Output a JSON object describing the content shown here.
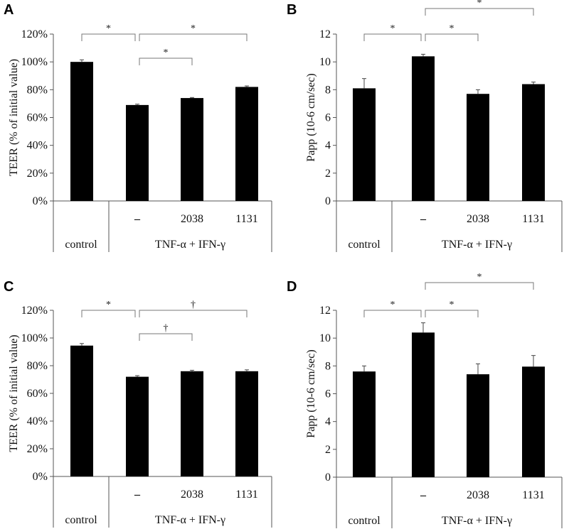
{
  "chart_data": [
    {
      "panel": "A",
      "type": "bar",
      "ylabel": "TEER (% of initial value)",
      "yticks": [
        "0%",
        "20%",
        "40%",
        "60%",
        "80%",
        "100%",
        "120%"
      ],
      "ylim": [
        0,
        120
      ],
      "categories": [
        "",
        "–",
        "2038",
        "1131"
      ],
      "groups": [
        "control",
        "TNF-α + IFN-γ"
      ],
      "values": [
        100,
        69,
        74,
        82
      ],
      "errors": [
        1.5,
        0.6,
        0.4,
        0.7
      ],
      "bar_color": "#000000",
      "comparisons": [
        {
          "from": 0,
          "to": 1,
          "label": "*"
        },
        {
          "from": 1,
          "to": 3,
          "label": "*"
        },
        {
          "from": 1,
          "to": 2,
          "label": "*"
        }
      ]
    },
    {
      "panel": "B",
      "type": "bar",
      "ylabel": "Papp (10-6 cm/sec)",
      "yticks": [
        "0",
        "2",
        "4",
        "6",
        "8",
        "10",
        "12"
      ],
      "ylim": [
        0,
        12
      ],
      "categories": [
        "",
        "–",
        "2038",
        "1131"
      ],
      "groups": [
        "control",
        "TNF-α + IFN-γ"
      ],
      "values": [
        8.1,
        10.4,
        7.7,
        8.4
      ],
      "errors": [
        0.7,
        0.15,
        0.3,
        0.15
      ],
      "bar_color": "#000000",
      "comparisons": [
        {
          "from": 0,
          "to": 1,
          "label": "*"
        },
        {
          "from": 1,
          "to": 2,
          "label": "*"
        },
        {
          "from": 1,
          "to": 3,
          "label": "*"
        }
      ]
    },
    {
      "panel": "C",
      "type": "bar",
      "ylabel": "TEER (% of initial value)",
      "yticks": [
        "0%",
        "20%",
        "40%",
        "60%",
        "80%",
        "100%",
        "120%"
      ],
      "ylim": [
        0,
        120
      ],
      "categories": [
        "",
        "–",
        "2038",
        "1131"
      ],
      "groups": [
        "control",
        "TNF-α + IFN-γ"
      ],
      "values": [
        94.5,
        72,
        76,
        76
      ],
      "errors": [
        1.5,
        0.8,
        0.7,
        1.0
      ],
      "bar_color": "#000000",
      "comparisons": [
        {
          "from": 0,
          "to": 1,
          "label": "*"
        },
        {
          "from": 1,
          "to": 3,
          "label": "†"
        },
        {
          "from": 1,
          "to": 2,
          "label": "†"
        }
      ]
    },
    {
      "panel": "D",
      "type": "bar",
      "ylabel": "Papp (10-6 cm/sec)",
      "yticks": [
        "0",
        "2",
        "4",
        "6",
        "8",
        "10",
        "12"
      ],
      "ylim": [
        0,
        12
      ],
      "categories": [
        "",
        "–",
        "2038",
        "1131"
      ],
      "groups": [
        "control",
        "TNF-α + IFN-γ"
      ],
      "values": [
        7.6,
        10.4,
        7.4,
        7.95
      ],
      "errors": [
        0.4,
        0.7,
        0.75,
        0.8
      ],
      "bar_color": "#000000",
      "comparisons": [
        {
          "from": 0,
          "to": 1,
          "label": "*"
        },
        {
          "from": 1,
          "to": 2,
          "label": "*"
        },
        {
          "from": 1,
          "to": 3,
          "label": "*"
        }
      ]
    }
  ]
}
